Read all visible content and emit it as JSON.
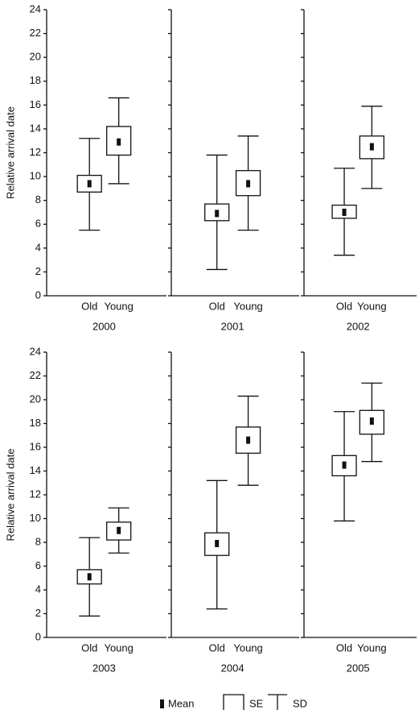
{
  "chart_data": [
    {
      "type": "box",
      "title": "2000",
      "ylabel": "Relative arrival date",
      "show_tick_labels": true,
      "categories": [
        "Old",
        "Young"
      ],
      "mean": [
        9.4,
        12.9
      ],
      "se_low": [
        8.7,
        11.8
      ],
      "se_high": [
        10.1,
        14.2
      ],
      "sd_low": [
        5.5,
        9.4
      ],
      "sd_high": [
        13.2,
        16.6
      ],
      "ylim": [
        0,
        24
      ],
      "yticks": [
        0,
        2,
        4,
        6,
        8,
        10,
        12,
        14,
        16,
        18,
        20,
        22,
        24
      ]
    },
    {
      "type": "box",
      "title": "2001",
      "show_tick_labels": false,
      "categories": [
        "Old",
        "Young"
      ],
      "mean": [
        6.9,
        9.4
      ],
      "se_low": [
        6.3,
        8.4
      ],
      "se_high": [
        7.7,
        10.5
      ],
      "sd_low": [
        2.2,
        5.5
      ],
      "sd_high": [
        11.8,
        13.4
      ],
      "ylim": [
        0,
        24
      ],
      "yticks": [
        0,
        2,
        4,
        6,
        8,
        10,
        12,
        14,
        16,
        18,
        20,
        22,
        24
      ]
    },
    {
      "type": "box",
      "title": "2002",
      "show_tick_labels": false,
      "categories": [
        "Old",
        "Young"
      ],
      "mean": [
        7.0,
        12.5
      ],
      "se_low": [
        6.5,
        11.5
      ],
      "se_high": [
        7.6,
        13.4
      ],
      "sd_low": [
        3.4,
        9.0
      ],
      "sd_high": [
        10.7,
        15.9
      ],
      "ylim": [
        0,
        24
      ],
      "yticks": [
        0,
        2,
        4,
        6,
        8,
        10,
        12,
        14,
        16,
        18,
        20,
        22,
        24
      ]
    },
    {
      "type": "box",
      "title": "2003",
      "ylabel": "Relative arrival date",
      "show_tick_labels": true,
      "categories": [
        "Old",
        "Young"
      ],
      "mean": [
        5.1,
        9.0
      ],
      "se_low": [
        4.5,
        8.2
      ],
      "se_high": [
        5.7,
        9.7
      ],
      "sd_low": [
        1.8,
        7.1
      ],
      "sd_high": [
        8.4,
        10.9
      ],
      "ylim": [
        0,
        24
      ],
      "yticks": [
        0,
        2,
        4,
        6,
        8,
        10,
        12,
        14,
        16,
        18,
        20,
        22,
        24
      ]
    },
    {
      "type": "box",
      "title": "2004",
      "show_tick_labels": false,
      "categories": [
        "Old",
        "Young"
      ],
      "mean": [
        7.9,
        16.6
      ],
      "se_low": [
        6.9,
        15.5
      ],
      "se_high": [
        8.8,
        17.7
      ],
      "sd_low": [
        2.4,
        12.8
      ],
      "sd_high": [
        13.2,
        20.3
      ],
      "ylim": [
        0,
        24
      ],
      "yticks": [
        0,
        2,
        4,
        6,
        8,
        10,
        12,
        14,
        16,
        18,
        20,
        22,
        24
      ]
    },
    {
      "type": "box",
      "title": "2005",
      "show_tick_labels": false,
      "categories": [
        "Old",
        "Young"
      ],
      "mean": [
        14.5,
        18.2
      ],
      "se_low": [
        13.6,
        17.1
      ],
      "se_high": [
        15.3,
        19.1
      ],
      "sd_low": [
        9.8,
        14.8
      ],
      "sd_high": [
        19.0,
        21.4
      ],
      "ylim": [
        0,
        24
      ],
      "yticks": [
        0,
        2,
        4,
        6,
        8,
        10,
        12,
        14,
        16,
        18,
        20,
        22,
        24
      ]
    }
  ],
  "legend": {
    "mean": "Mean",
    "se": "SE",
    "sd": "SD"
  }
}
